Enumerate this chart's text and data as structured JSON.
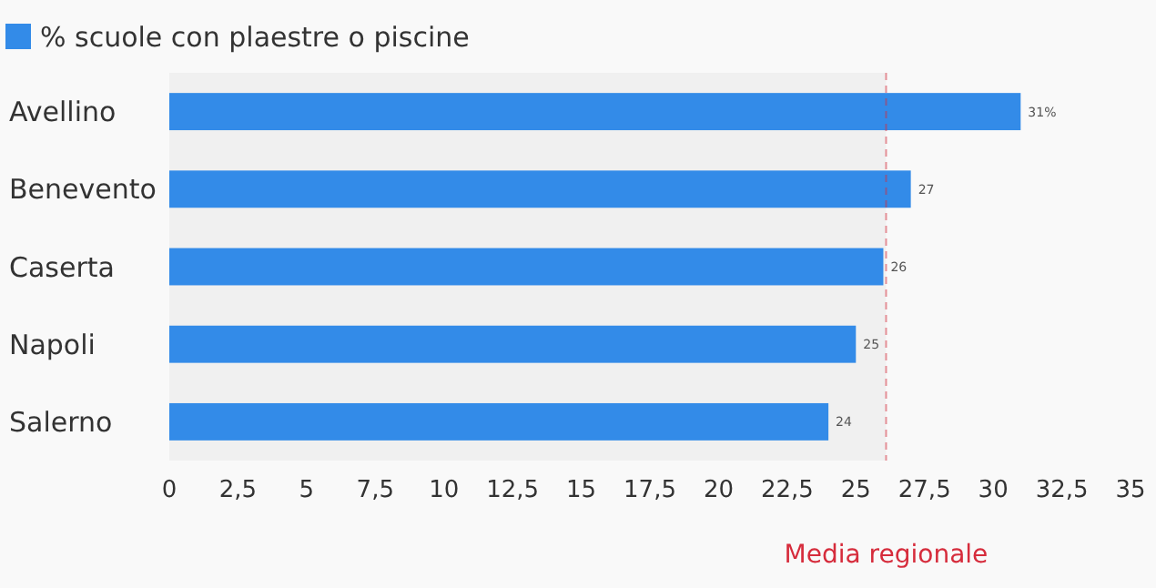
{
  "chart_data": {
    "type": "bar",
    "orientation": "horizontal",
    "categories": [
      "Avellino",
      "Benevento",
      "Caserta",
      "Napoli",
      "Salerno"
    ],
    "series": [
      {
        "name": "% scuole con plaestre o piscine",
        "color": "#338be8",
        "values": [
          31,
          27,
          26,
          25,
          24
        ],
        "value_labels": [
          "31%",
          "27",
          "26",
          "25",
          "24"
        ]
      }
    ],
    "xlim": [
      0,
      35
    ],
    "xticks": [
      0,
      {
        "value": 2.5,
        "label": "2,5"
      },
      5,
      {
        "value": 7.5,
        "label": "7,5"
      },
      10,
      {
        "value": 12.5,
        "label": "12,5"
      },
      15,
      {
        "value": 17.5,
        "label": "17,5"
      },
      20,
      {
        "value": 22.5,
        "label": "22,5"
      },
      25,
      {
        "value": 27.5,
        "label": "27,5"
      },
      30,
      {
        "value": 32.5,
        "label": "32,5"
      },
      35
    ],
    "bands": [
      {
        "axis": "x",
        "from": 0,
        "to": 26.1,
        "color": "#f0f0f0"
      }
    ],
    "ref_lines": [
      {
        "axis": "x",
        "value": 26.1,
        "label": "Media regionale",
        "color": "#d62c3c",
        "line_style": "dashed"
      }
    ],
    "legend": "top left",
    "grid": false
  }
}
